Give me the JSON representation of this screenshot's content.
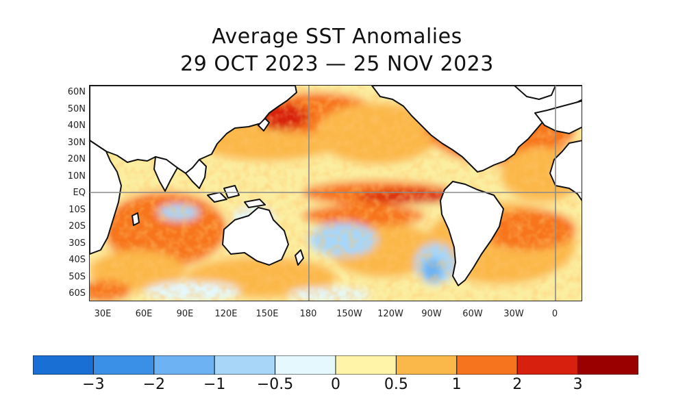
{
  "title_line1": "Average SST Anomalies",
  "title_line2": "29 OCT 2023 — 25 NOV 2023",
  "y_ticks": [
    "60N",
    "50N",
    "40N",
    "30N",
    "20N",
    "10N",
    "EQ",
    "10S",
    "20S",
    "30S",
    "40S",
    "50S",
    "60S"
  ],
  "x_ticks": [
    "30E",
    "60E",
    "90E",
    "120E",
    "150E",
    "180",
    "150W",
    "120W",
    "90W",
    "60W",
    "30W",
    "0"
  ],
  "colorbar": {
    "colors": [
      "#1a6fd4",
      "#3a8fe6",
      "#6db2f2",
      "#a8d6f8",
      "#e4f8fd",
      "#fff4a8",
      "#fbb84a",
      "#f7741e",
      "#d8200e",
      "#9a0000"
    ],
    "tick_labels": [
      "−3",
      "−2",
      "−1",
      "−0.5",
      "0",
      "0.5",
      "1",
      "2",
      "3"
    ]
  },
  "map": {
    "land_color": "#ffffff",
    "coast_color": "#111111",
    "ocean_base_color": "#fbeea0",
    "reference_lines": [
      "EQ",
      "180",
      "0"
    ]
  }
}
